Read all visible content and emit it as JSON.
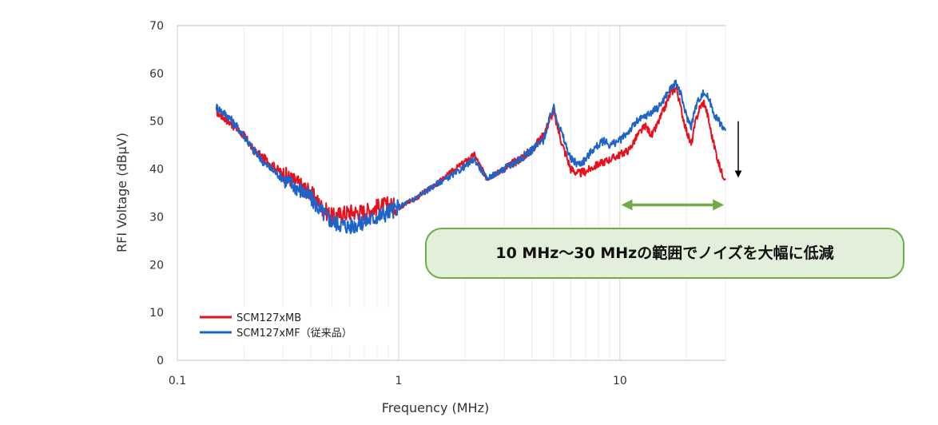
{
  "chart_data": {
    "type": "line",
    "xlabel": "Frequency (MHz)",
    "ylabel": "RFI Voltage (dBμV)",
    "x_scale": "log",
    "xlim": [
      0.1,
      30
    ],
    "ylim": [
      0,
      70
    ],
    "x_ticks": [
      {
        "value": 0.1,
        "label": "0.1"
      },
      {
        "value": 1,
        "label": "1"
      },
      {
        "value": 10,
        "label": "10"
      }
    ],
    "y_ticks": [
      {
        "value": 0,
        "label": "0"
      },
      {
        "value": 10,
        "label": "10"
      },
      {
        "value": 20,
        "label": "20"
      },
      {
        "value": 30,
        "label": "30"
      },
      {
        "value": 40,
        "label": "40"
      },
      {
        "value": 50,
        "label": "50"
      },
      {
        "value": 60,
        "label": "60"
      },
      {
        "value": 70,
        "label": "70"
      }
    ],
    "grid": "log-vertical",
    "legend_position": "bottom-left",
    "series": [
      {
        "name": "SCM127xMB",
        "color": "#e8101a",
        "points": [
          [
            0.15,
            52
          ],
          [
            0.17,
            50
          ],
          [
            0.2,
            47
          ],
          [
            0.22,
            44
          ],
          [
            0.25,
            42
          ],
          [
            0.3,
            39
          ],
          [
            0.35,
            37
          ],
          [
            0.4,
            35
          ],
          [
            0.45,
            32
          ],
          [
            0.5,
            30
          ],
          [
            0.6,
            31
          ],
          [
            0.7,
            31
          ],
          [
            0.8,
            32
          ],
          [
            0.9,
            32.5
          ],
          [
            1,
            32
          ],
          [
            1.2,
            34
          ],
          [
            1.5,
            37
          ],
          [
            1.8,
            40
          ],
          [
            2.2,
            43
          ],
          [
            2.5,
            38
          ],
          [
            3,
            40
          ],
          [
            3.5,
            42
          ],
          [
            4,
            44
          ],
          [
            4.5,
            47
          ],
          [
            5,
            52
          ],
          [
            5.5,
            45
          ],
          [
            6,
            40
          ],
          [
            6.5,
            39
          ],
          [
            7,
            39.5
          ],
          [
            8,
            41
          ],
          [
            9,
            42
          ],
          [
            10,
            43
          ],
          [
            11,
            44
          ],
          [
            12,
            47
          ],
          [
            13,
            49
          ],
          [
            14,
            47
          ],
          [
            15,
            50
          ],
          [
            16,
            53
          ],
          [
            17,
            56
          ],
          [
            18,
            57
          ],
          [
            19,
            52
          ],
          [
            20,
            48
          ],
          [
            21,
            45
          ],
          [
            22,
            50
          ],
          [
            23,
            53
          ],
          [
            24,
            54
          ],
          [
            25,
            51
          ],
          [
            26,
            47
          ],
          [
            27,
            44
          ],
          [
            28,
            41
          ],
          [
            29,
            39
          ],
          [
            30,
            38
          ]
        ]
      },
      {
        "name": "SCM127xMF（従来品）",
        "color": "#1e64c8",
        "points": [
          [
            0.15,
            53
          ],
          [
            0.17,
            51
          ],
          [
            0.2,
            47
          ],
          [
            0.22,
            44
          ],
          [
            0.25,
            41
          ],
          [
            0.3,
            38
          ],
          [
            0.35,
            36
          ],
          [
            0.4,
            34
          ],
          [
            0.45,
            31
          ],
          [
            0.5,
            29
          ],
          [
            0.6,
            28
          ],
          [
            0.7,
            29
          ],
          [
            0.8,
            30
          ],
          [
            0.9,
            31
          ],
          [
            1,
            32
          ],
          [
            1.2,
            34
          ],
          [
            1.5,
            37
          ],
          [
            1.8,
            39
          ],
          [
            2.2,
            42
          ],
          [
            2.5,
            38
          ],
          [
            3,
            40
          ],
          [
            3.5,
            42
          ],
          [
            4,
            44
          ],
          [
            4.5,
            46
          ],
          [
            5,
            53
          ],
          [
            5.5,
            47
          ],
          [
            6,
            42
          ],
          [
            6.5,
            41
          ],
          [
            7,
            42
          ],
          [
            7.5,
            44
          ],
          [
            8,
            45
          ],
          [
            8.5,
            46
          ],
          [
            9,
            45
          ],
          [
            10,
            46
          ],
          [
            11,
            48
          ],
          [
            12,
            50
          ],
          [
            13,
            51
          ],
          [
            14,
            52
          ],
          [
            15,
            53
          ],
          [
            16,
            55
          ],
          [
            17,
            57
          ],
          [
            18,
            58
          ],
          [
            19,
            55
          ],
          [
            20,
            51
          ],
          [
            21,
            49
          ],
          [
            22,
            53
          ],
          [
            23,
            55
          ],
          [
            24,
            56
          ],
          [
            25,
            55
          ],
          [
            26,
            53
          ],
          [
            27,
            51
          ],
          [
            28,
            50
          ],
          [
            29,
            49
          ],
          [
            30,
            48
          ]
        ]
      }
    ],
    "annotations": {
      "callout_text": "10 MHz～30 MHzの範囲でノイズを大幅に低減",
      "range_arrow_x": [
        10,
        30
      ],
      "range_arrow_y": 32.5,
      "drop_arrow_x": 30.3,
      "drop_arrow_y": [
        50,
        38.5
      ],
      "arrow_color": "#70ad47",
      "callout_fill": "#e2efda",
      "callout_border": "#70ad47"
    }
  }
}
